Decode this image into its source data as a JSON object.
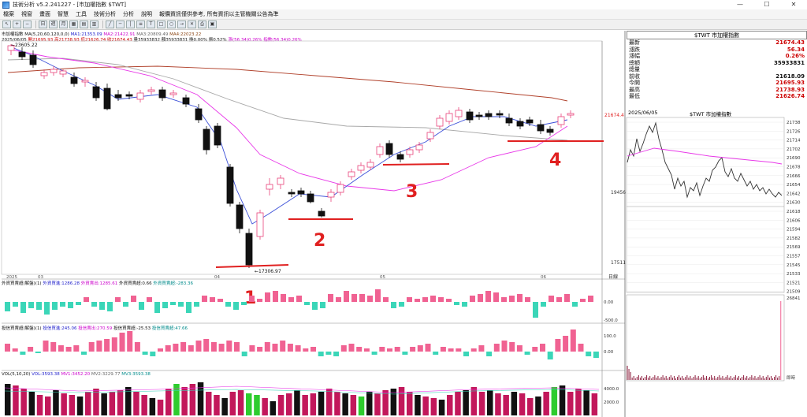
{
  "window": {
    "title": "技術分析 v5.2.241227 - [市加權指數 $TWT]",
    "buttons": [
      "—",
      "☐",
      "✕"
    ]
  },
  "menu": [
    "檔案",
    "視窗",
    "畫面",
    "智慧",
    "工具",
    "技術分析",
    "分析",
    "說明",
    "報價資訊僅供參考, 所有資訊以主管機關公告為準"
  ],
  "info": {
    "line1": {
      "name": "市加權指數",
      "ma_label": "MA(5,20,60,120,0,0)",
      "ma1": "MA1:21353.09",
      "ma2": "MA2:21422.91",
      "ma3": "MA3:20809.49",
      "ma4": "MA4:22023.22"
    },
    "line2": {
      "date": "2025/06/05",
      "open": "開21695.93",
      "high": "高21738.93",
      "low": "低21626.74",
      "close": "收21674.43",
      "vol": "量35933832",
      "amount": "額35933831",
      "chg1": "換0.00%",
      "chg2": "振0.52%",
      "rise": "漲(56.34)0.26%",
      "index": "指數(56.34)0.26%"
    }
  },
  "chart": {
    "price_labels": {
      "top_high": "23605.22",
      "low": "17306.97",
      "current": "21674.4",
      "mid": "19456",
      "bottom": "17511"
    },
    "x_labels": [
      "2025",
      "03",
      "04",
      "05",
      "06"
    ],
    "side_label": "日線",
    "annotations": [
      "1",
      "2",
      "3",
      "4"
    ]
  },
  "panels": {
    "foreign": {
      "title": "外資買賣超(解盤)(1)",
      "v1": "外資買進:1286.28",
      "v2": "外資賣出:1285.61",
      "v3": "外資買賣超:0.66",
      "v4": "外資買賣超:-283.36",
      "ticks": [
        "0.00",
        "-500.0"
      ]
    },
    "dealer": {
      "title": "投信買賣超(解盤)(1)",
      "v1": "投信買進:245.06",
      "v2": "投信賣出:270.59",
      "v3": "投信買賣超:-25.53",
      "v4": "投信買賣超:47.66",
      "ticks": [
        "100.0",
        "0.00"
      ]
    },
    "volume": {
      "title": "VOL(5,10,20)",
      "v1": "VOL:3593.38",
      "v2": "MV1:3452.20",
      "v3": "MV2:3229.77",
      "v4": "MV3:3593.38",
      "ticks": [
        "4000.0",
        "2000.0"
      ]
    }
  },
  "right_panel": {
    "title": "$TWT 市加權指數",
    "rows": [
      {
        "label": "最新",
        "value": "21674.43",
        "color": "#cc0000"
      },
      {
        "label": "漲跌",
        "value": "56.34",
        "color": "#cc0000"
      },
      {
        "label": "漲幅",
        "value": "0.26%",
        "color": "#cc0000"
      },
      {
        "label": "總額",
        "value": "35933831",
        "color": "#111111"
      },
      {
        "label": "總量",
        "value": "",
        "color": "#111111"
      },
      {
        "label": "前收",
        "value": "21618.09",
        "color": "#111111"
      },
      {
        "label": "今開",
        "value": "21695.93",
        "color": "#cc0000"
      },
      {
        "label": "最高",
        "value": "21738.93",
        "color": "#cc0000"
      },
      {
        "label": "最低",
        "value": "21626.74",
        "color": "#cc0000"
      }
    ],
    "intraday": {
      "date": "2025/06/05",
      "title": "$TWT 市加權指數",
      "ticks": [
        "21738",
        "21726",
        "21714",
        "21702",
        "21690",
        "21678",
        "21666",
        "21654",
        "21642",
        "21630",
        "21618",
        "21606",
        "21594",
        "21582",
        "21569",
        "21557",
        "21545",
        "21533",
        "21521",
        "21509"
      ],
      "vol_top": "26841",
      "time_label": "即時"
    }
  },
  "colors": {
    "up": "#e8437a",
    "down": "#111111",
    "ma_blue": "#3b4fd8",
    "ma_magenta": "#e838e8",
    "ma_gray": "#a8a8a8",
    "ma_brown": "#b0402a",
    "teal": "#3bd6b8",
    "pink": "#f06292",
    "red_line": "#e02020",
    "vol_green": "#2ecc2e"
  }
}
